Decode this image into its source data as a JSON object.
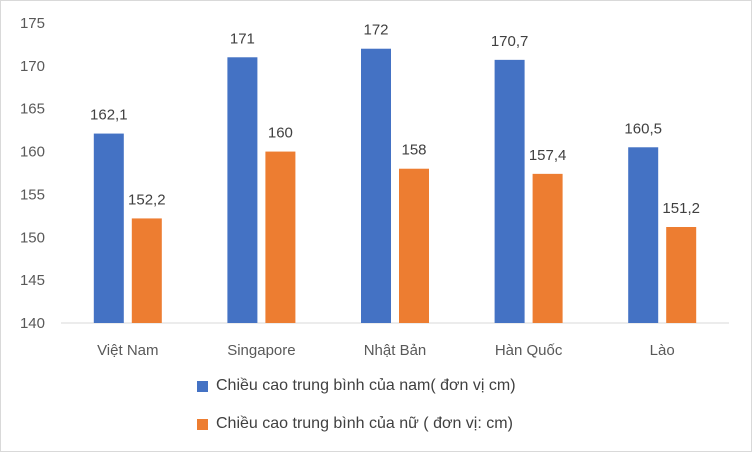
{
  "chart_data": {
    "type": "bar",
    "title": "",
    "xlabel": "",
    "ylabel": "",
    "categories": [
      "Việt Nam",
      "Singapore",
      "Nhật Bản",
      "Hàn Quốc",
      "Lào"
    ],
    "series": [
      {
        "name": "Chiều cao trung bình của nam( đơn vị cm)",
        "color": "#4472c4",
        "values": [
          162.1,
          171,
          172,
          170.7,
          160.5
        ],
        "labels": [
          "162,1",
          "171",
          "172",
          "170,7",
          "160,5"
        ]
      },
      {
        "name": "Chiều cao trung bình của nữ ( đơn vị: cm)",
        "color": "#ed7d31",
        "values": [
          152.2,
          160,
          158,
          157.4,
          151.2
        ],
        "labels": [
          "152,2",
          "160",
          "158",
          "157,4",
          "151,2"
        ]
      }
    ],
    "ylim": [
      140,
      175
    ],
    "yticks": [
      140,
      145,
      150,
      155,
      160,
      165,
      170,
      175
    ],
    "grid": false,
    "legend_position": "bottom"
  }
}
